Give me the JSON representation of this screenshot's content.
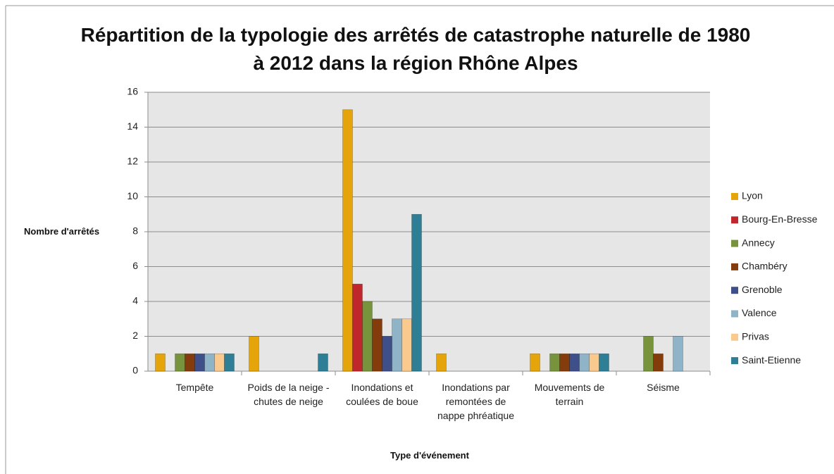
{
  "chart_data": {
    "type": "bar",
    "title": "Répartition de la typologie des arrêtés de catastrophe naturelle de 1980 à 2012 dans la région Rhône Alpes",
    "xlabel": "Type d'événement",
    "ylabel": "Nombre d'arrêtés",
    "categories": [
      "Tempête",
      "Poids de la neige - chutes de neige",
      "Inondations et coulées de boue",
      "Inondations par remontées de nappe phréatique",
      "Mouvements de terrain",
      "Séisme"
    ],
    "series": [
      {
        "name": "Lyon",
        "color": "#e5a50a",
        "values": [
          1,
          2,
          15,
          1,
          1,
          0
        ]
      },
      {
        "name": "Bourg-En-Bresse",
        "color": "#c0272d",
        "values": [
          0,
          0,
          5,
          0,
          0,
          0
        ]
      },
      {
        "name": "Annecy",
        "color": "#77933c",
        "values": [
          1,
          0,
          4,
          0,
          1,
          2
        ]
      },
      {
        "name": "Chambéry",
        "color": "#843c0c",
        "values": [
          1,
          0,
          3,
          0,
          1,
          1
        ]
      },
      {
        "name": "Grenoble",
        "color": "#3f4f8a",
        "values": [
          1,
          0,
          2,
          0,
          1,
          0
        ]
      },
      {
        "name": "Valence",
        "color": "#8fb4c8",
        "values": [
          1,
          0,
          3,
          0,
          1,
          2
        ]
      },
      {
        "name": "Privas",
        "color": "#fac98e",
        "values": [
          1,
          0,
          3,
          0,
          1,
          0
        ]
      },
      {
        "name": "Saint-Etienne",
        "color": "#2e7f96",
        "values": [
          1,
          1,
          9,
          0,
          1,
          0
        ]
      }
    ],
    "ylim": [
      0,
      16
    ],
    "yticks": [
      0,
      2,
      4,
      6,
      8,
      10,
      12,
      14,
      16
    ],
    "grid": true,
    "legend": "right"
  }
}
